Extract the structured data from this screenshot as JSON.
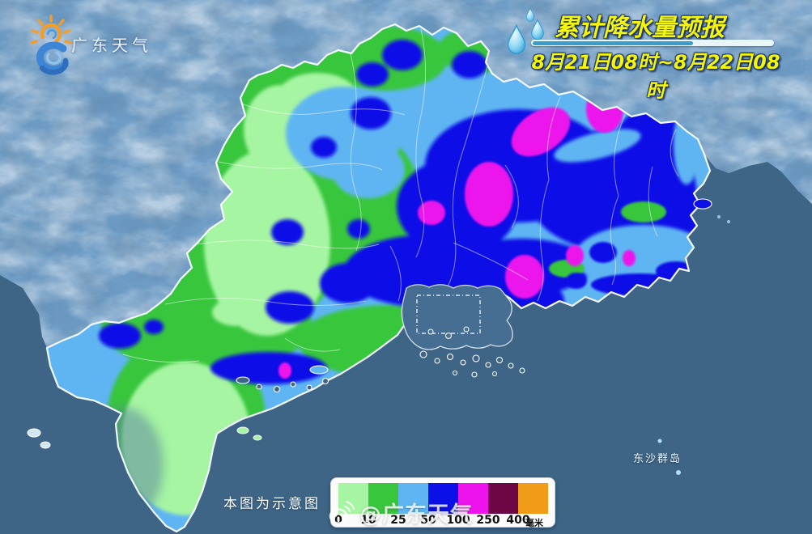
{
  "logo": {
    "text": "广东天气",
    "icon": "sun-cloud-swirl-icon"
  },
  "header": {
    "title": "累计降水量预报",
    "date_range": "8月21日08时~8月22日08时",
    "title_color": "#F5F50A",
    "bar_color": "#3A9CC8",
    "icon": "raindrops-icon"
  },
  "legend": {
    "values": [
      "0",
      "10",
      "25",
      "50",
      "100",
      "250",
      "400"
    ],
    "unit": "毫米",
    "colors": [
      "#A6F5A2",
      "#38C63C",
      "#5FB5F2",
      "#0B10E8",
      "#EC13EC",
      "#6E0545",
      "#F19C19"
    ]
  },
  "map": {
    "note": "本图为示意图",
    "island_label": "东沙群岛",
    "ocean_color": "#3E6585",
    "terrain_color": "#6F9DC6",
    "estuary_color": "#456E92",
    "border_color": "#F2F8FC"
  },
  "watermark": {
    "text": "@广东天气",
    "icon": "weibo-icon"
  }
}
